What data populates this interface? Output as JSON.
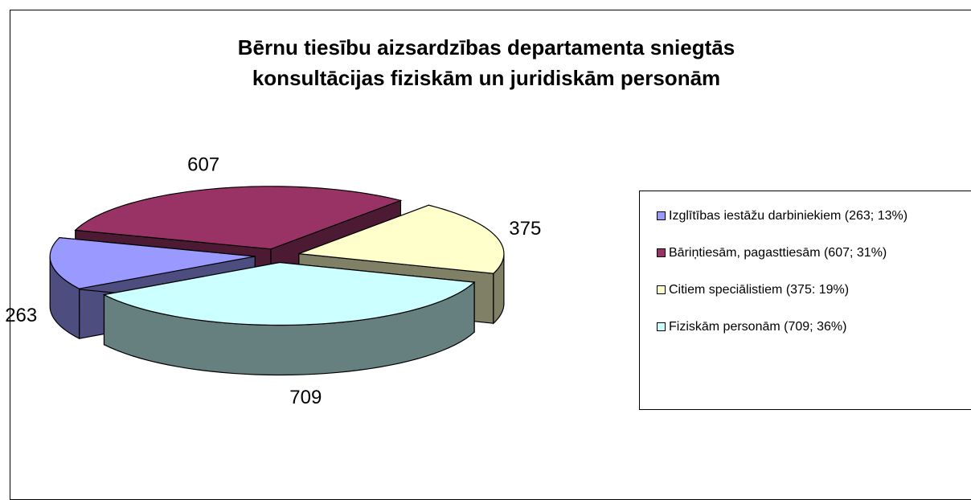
{
  "chart_data": {
    "type": "pie",
    "title": "Bērnu tiesību aizsardzības departamenta sniegtās konsultācijas fiziskām un juridiskām personām",
    "categories": [
      "Izglītības iestāžu darbiniekiem (263; 13%)",
      "Bāriņtiesām, pagasttiesām (607; 31%)",
      "Citiem speciālistiem (375: 19%)",
      "Fiziskām personām (709; 36%)"
    ],
    "values": [
      263,
      607,
      375,
      709
    ],
    "colors": [
      "#9999ff",
      "#993366",
      "#ffffcc",
      "#ccffff"
    ],
    "legend": "right"
  }
}
